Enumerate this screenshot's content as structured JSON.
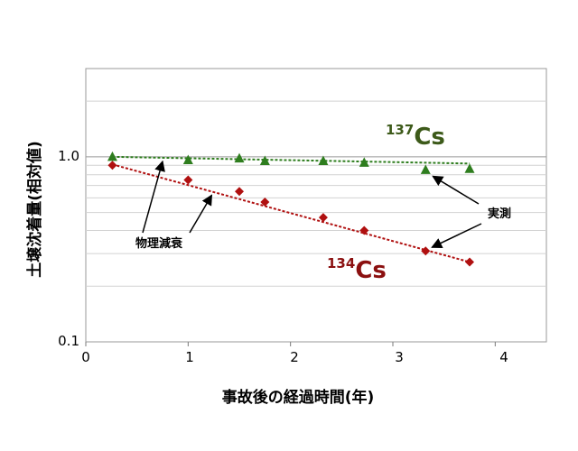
{
  "chart_data": {
    "type": "scatter",
    "xlabel": "事故後の経過時間(年)",
    "ylabel": "土壌沈着量(相対値)",
    "xlim": [
      0,
      4.5
    ],
    "ylim": [
      0.1,
      3.0
    ],
    "yscale": "log",
    "xticks": [
      "0",
      "1",
      "2",
      "3",
      "4"
    ],
    "yticks": [
      "0.1",
      "1.0"
    ],
    "grid": "horizontal minor (log)",
    "series": [
      {
        "isotope_mass": "137",
        "element": "Cs",
        "color": "#2e7d1e",
        "label_color": "#3d5a1a",
        "marker": "triangle",
        "x": [
          0.26,
          1.0,
          1.5,
          1.75,
          2.32,
          2.72,
          3.32,
          3.75
        ],
        "y": [
          1.0,
          0.96,
          0.98,
          0.95,
          0.95,
          0.93,
          0.85,
          0.86
        ],
        "fit": {
          "x": [
            0.26,
            3.75
          ],
          "y": [
            1.0,
            0.92
          ]
        }
      },
      {
        "isotope_mass": "134",
        "element": "Cs",
        "color": "#b01010",
        "label_color": "#8b1010",
        "marker": "diamond",
        "x": [
          0.26,
          1.0,
          1.5,
          1.75,
          2.32,
          2.72,
          3.32,
          3.75
        ],
        "y": [
          0.9,
          0.75,
          0.65,
          0.57,
          0.47,
          0.4,
          0.31,
          0.27
        ],
        "fit": {
          "x": [
            0.26,
            3.75
          ],
          "y": [
            0.91,
            0.27
          ]
        }
      }
    ],
    "annotations": {
      "physical_decay": "物理減衰",
      "measured": "実測"
    }
  }
}
